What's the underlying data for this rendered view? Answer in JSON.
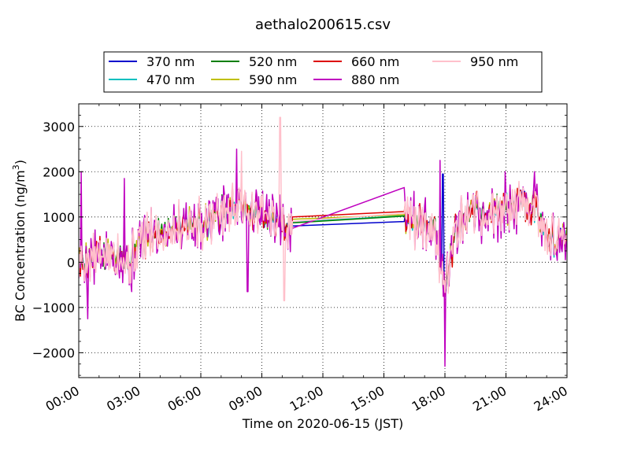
{
  "chart_data": {
    "type": "line",
    "title": "aethalo200615.csv",
    "xlabel": "Time on 2020-06-15 (JST)",
    "ylabel": "BC Concentration (ng/m",
    "ylabel_sup": "3",
    "ylabel_end": ")",
    "x_unit": "hours since 00:00 JST",
    "xlim": [
      0,
      24
    ],
    "ylim": [
      -2550,
      3500
    ],
    "x_ticks": [
      0,
      3,
      6,
      9,
      12,
      15,
      18,
      21,
      24
    ],
    "x_tick_labels": [
      "00:00",
      "03:00",
      "06:00",
      "09:00",
      "12:00",
      "15:00",
      "18:00",
      "21:00",
      "24:00"
    ],
    "y_ticks": [
      -2000,
      -1000,
      0,
      1000,
      2000,
      3000
    ],
    "y_tick_labels": [
      "−2000",
      "−1000",
      "0",
      "1000",
      "2000",
      "3000"
    ],
    "grid": true,
    "legend_position": "top",
    "gap": {
      "start": 10.5,
      "end": 16.0
    },
    "series": [
      {
        "name": "370 nm",
        "color": "#0000cc",
        "amp": 320,
        "seed": 11,
        "gap_values": [
          800,
          900
        ]
      },
      {
        "name": "470 nm",
        "color": "#00bfbf",
        "amp": 340,
        "seed": 23,
        "gap_values": [
          880,
          1030
        ]
      },
      {
        "name": "520 nm",
        "color": "#007f00",
        "amp": 360,
        "seed": 37,
        "gap_values": [
          870,
          1020
        ]
      },
      {
        "name": "590 nm",
        "color": "#bfbf00",
        "amp": 380,
        "seed": 41,
        "gap_values": [
          950,
          1050
        ]
      },
      {
        "name": "660 nm",
        "color": "#dd0000",
        "amp": 420,
        "seed": 53,
        "gap_values": [
          1000,
          1120
        ]
      },
      {
        "name": "880 nm",
        "color": "#bf00bf",
        "amp": 560,
        "seed": 67,
        "gap_values": [
          750,
          1650
        ]
      },
      {
        "name": "950 nm",
        "color": "#ffc0cb",
        "amp": 520,
        "seed": 79,
        "gap_values": [
          900,
          1080
        ]
      }
    ],
    "trend_x": [
      0,
      1,
      2,
      2.5,
      3,
      4,
      5,
      6,
      7,
      8,
      9,
      9.8,
      10.5,
      16.0,
      16.5,
      17.0,
      17.5,
      18.0,
      18.5,
      19.0,
      19.5,
      20,
      21,
      22,
      22.5,
      23,
      23.5,
      24
    ],
    "trend_y": [
      0,
      150,
      250,
      0,
      500,
      650,
      850,
      850,
      1100,
      1300,
      1000,
      900,
      800,
      800,
      900,
      850,
      800,
      -600,
      700,
      900,
      1100,
      1000,
      1200,
      1300,
      1200,
      700,
      400,
      600
    ],
    "spikes": [
      {
        "x": 0.12,
        "y": 2000,
        "s": "880 nm"
      },
      {
        "x": 0.45,
        "y": -1250,
        "s": "880 nm"
      },
      {
        "x": 2.25,
        "y": 1850,
        "s": "880 nm"
      },
      {
        "x": 2.6,
        "y": -650,
        "s": "880 nm"
      },
      {
        "x": 7.75,
        "y": 2500,
        "s": "880 nm"
      },
      {
        "x": 8.0,
        "y": 2450,
        "s": "950 nm"
      },
      {
        "x": 8.3,
        "y": -650,
        "s": "880 nm"
      },
      {
        "x": 9.9,
        "y": 3200,
        "s": "950 nm"
      },
      {
        "x": 10.1,
        "y": -850,
        "s": "950 nm"
      },
      {
        "x": 17.9,
        "y": 1950,
        "s": "370 nm"
      },
      {
        "x": 18.0,
        "y": -2300,
        "s": "880 nm"
      },
      {
        "x": 17.75,
        "y": 2250,
        "s": "880 nm"
      },
      {
        "x": 20.95,
        "y": 2000,
        "s": "880 nm"
      },
      {
        "x": 22.4,
        "y": 2000,
        "s": "880 nm"
      }
    ]
  }
}
